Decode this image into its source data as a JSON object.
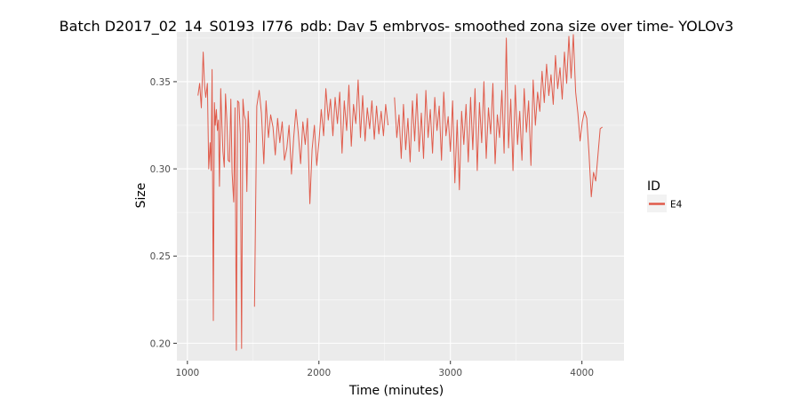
{
  "chart_data": {
    "type": "line",
    "title": "Batch D2017_02_14_S0193_I776_pdb: Day 5 embryos- smoothed zona size over time- YOLOv3",
    "xlabel": "Time (minutes)",
    "ylabel": "Size",
    "xlim": [
      920,
      4320
    ],
    "ylim": [
      0.19,
      0.3785
    ],
    "x_ticks": [
      1000,
      2000,
      3000,
      4000
    ],
    "x_tick_labels": [
      "1000",
      "2000",
      "3000",
      "4000"
    ],
    "y_ticks": [
      0.2,
      0.25,
      0.3,
      0.35
    ],
    "y_tick_labels": [
      "0.20",
      "0.25",
      "0.30",
      "0.35"
    ],
    "grid": true,
    "legend": {
      "title": "ID",
      "position": "right"
    },
    "colors": {
      "panel": "#ebebeb",
      "grid_major": "#ffffff",
      "series": "#e05b4b"
    },
    "series": [
      {
        "name": "E4",
        "color": "#e05b4b",
        "segments": [
          {
            "x": [
              1080,
              1093,
              1106,
              1120,
              1130,
              1140,
              1152,
              1162,
              1173,
              1180,
              1188,
              1197,
              1205,
              1212,
              1220,
              1228,
              1236,
              1244,
              1253,
              1262,
              1270,
              1280,
              1290,
              1300,
              1310,
              1320,
              1330,
              1340,
              1352,
              1362,
              1372,
              1382,
              1392,
              1402,
              1412,
              1422,
              1432,
              1442,
              1452,
              1462,
              1472
            ],
            "y": [
              0.342,
              0.349,
              0.335,
              0.367,
              0.348,
              0.341,
              0.349,
              0.3,
              0.315,
              0.299,
              0.357,
              0.213,
              0.338,
              0.325,
              0.334,
              0.322,
              0.328,
              0.29,
              0.346,
              0.326,
              0.31,
              0.301,
              0.343,
              0.328,
              0.305,
              0.304,
              0.34,
              0.298,
              0.281,
              0.335,
              0.196,
              0.339,
              0.338,
              0.32,
              0.197,
              0.34,
              0.331,
              0.328,
              0.287,
              0.333,
              0.315
            ]
          },
          {
            "x": [
              1510,
              1528,
              1546,
              1563,
              1581,
              1598,
              1616,
              1633,
              1651,
              1668,
              1686,
              1703,
              1721,
              1738,
              1756,
              1773,
              1791,
              1808,
              1826,
              1843,
              1861,
              1878,
              1896,
              1913,
              1931,
              1948,
              1966,
              1983,
              2001,
              2018,
              2036,
              2053,
              2071,
              2088,
              2106,
              2123,
              2141,
              2158,
              2176,
              2193,
              2211,
              2228,
              2246,
              2263,
              2281,
              2298,
              2316,
              2333,
              2351,
              2368,
              2386,
              2403,
              2421,
              2438,
              2456,
              2473,
              2491,
              2508,
              2526
            ],
            "y": [
              0.221,
              0.336,
              0.345,
              0.332,
              0.303,
              0.339,
              0.318,
              0.331,
              0.324,
              0.308,
              0.329,
              0.315,
              0.327,
              0.305,
              0.312,
              0.325,
              0.297,
              0.318,
              0.334,
              0.321,
              0.303,
              0.327,
              0.314,
              0.329,
              0.28,
              0.311,
              0.325,
              0.302,
              0.316,
              0.334,
              0.319,
              0.346,
              0.328,
              0.34,
              0.319,
              0.341,
              0.326,
              0.344,
              0.309,
              0.339,
              0.322,
              0.348,
              0.313,
              0.337,
              0.326,
              0.351,
              0.318,
              0.342,
              0.316,
              0.335,
              0.323,
              0.339,
              0.317,
              0.336,
              0.32,
              0.333,
              0.319,
              0.337,
              0.325
            ]
          },
          {
            "x": [
              2575,
              2592,
              2609,
              2626,
              2643,
              2660,
              2677,
              2694,
              2711,
              2728,
              2745,
              2762,
              2779,
              2796,
              2813,
              2830,
              2847,
              2864,
              2881,
              2898,
              2915,
              2932,
              2949,
              2966,
              2983,
              3000,
              3017,
              3034,
              3051,
              3068,
              3085,
              3102,
              3119,
              3136,
              3153,
              3170,
              3187,
              3204,
              3221,
              3238,
              3255,
              3272,
              3289,
              3306,
              3323,
              3340,
              3357,
              3374,
              3391,
              3408,
              3425,
              3442,
              3459,
              3476,
              3493,
              3510,
              3527,
              3544,
              3561,
              3578,
              3595,
              3612,
              3629,
              3646,
              3663,
              3680,
              3697,
              3714,
              3731,
              3748,
              3765,
              3782,
              3799,
              3816,
              3833,
              3850,
              3867,
              3884,
              3901,
              3918,
              3935,
              3952,
              3969,
              3986,
              4003,
              4020,
              4037,
              4054,
              4071,
              4088,
              4105,
              4122,
              4139,
              4156
            ],
            "y": [
              0.341,
              0.318,
              0.331,
              0.306,
              0.337,
              0.311,
              0.329,
              0.304,
              0.339,
              0.316,
              0.343,
              0.31,
              0.332,
              0.306,
              0.345,
              0.318,
              0.334,
              0.309,
              0.341,
              0.322,
              0.336,
              0.305,
              0.344,
              0.319,
              0.33,
              0.31,
              0.339,
              0.292,
              0.328,
              0.288,
              0.333,
              0.314,
              0.337,
              0.304,
              0.341,
              0.311,
              0.346,
              0.299,
              0.338,
              0.315,
              0.35,
              0.306,
              0.335,
              0.32,
              0.349,
              0.303,
              0.331,
              0.318,
              0.345,
              0.309,
              0.375,
              0.312,
              0.34,
              0.299,
              0.348,
              0.314,
              0.333,
              0.305,
              0.346,
              0.321,
              0.339,
              0.302,
              0.351,
              0.325,
              0.344,
              0.333,
              0.356,
              0.338,
              0.36,
              0.342,
              0.354,
              0.337,
              0.365,
              0.346,
              0.358,
              0.34,
              0.367,
              0.349,
              0.376,
              0.352,
              0.377,
              0.344,
              0.332,
              0.316,
              0.327,
              0.333,
              0.329,
              0.309,
              0.284,
              0.298,
              0.293,
              0.308,
              0.323,
              0.324
            ]
          }
        ]
      }
    ]
  }
}
